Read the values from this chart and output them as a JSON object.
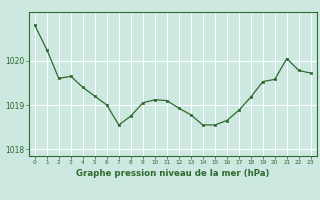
{
  "x": [
    0,
    1,
    2,
    3,
    4,
    5,
    6,
    7,
    8,
    9,
    10,
    11,
    12,
    13,
    14,
    15,
    16,
    17,
    18,
    19,
    20,
    21,
    22,
    23
  ],
  "y": [
    1020.8,
    1020.25,
    1019.6,
    1019.65,
    1019.4,
    1019.2,
    1019.0,
    1018.55,
    1018.75,
    1019.05,
    1019.12,
    1019.1,
    1018.93,
    1018.78,
    1018.55,
    1018.55,
    1018.65,
    1018.88,
    1019.18,
    1019.53,
    1019.58,
    1020.05,
    1019.78,
    1019.72
  ],
  "line_color": "#2d6a2d",
  "marker_color": "#2d6a2d",
  "bg_color": "#cce8e0",
  "grid_color": "#ffffff",
  "border_color": "#2d6a2d",
  "xlabel": "Graphe pression niveau de la mer (hPa)",
  "xlabel_color": "#2d6a2d",
  "tick_color": "#2d6a2d",
  "yticks": [
    1018,
    1019,
    1020
  ],
  "ylim": [
    1017.85,
    1021.1
  ],
  "xlim": [
    -0.5,
    23.5
  ]
}
